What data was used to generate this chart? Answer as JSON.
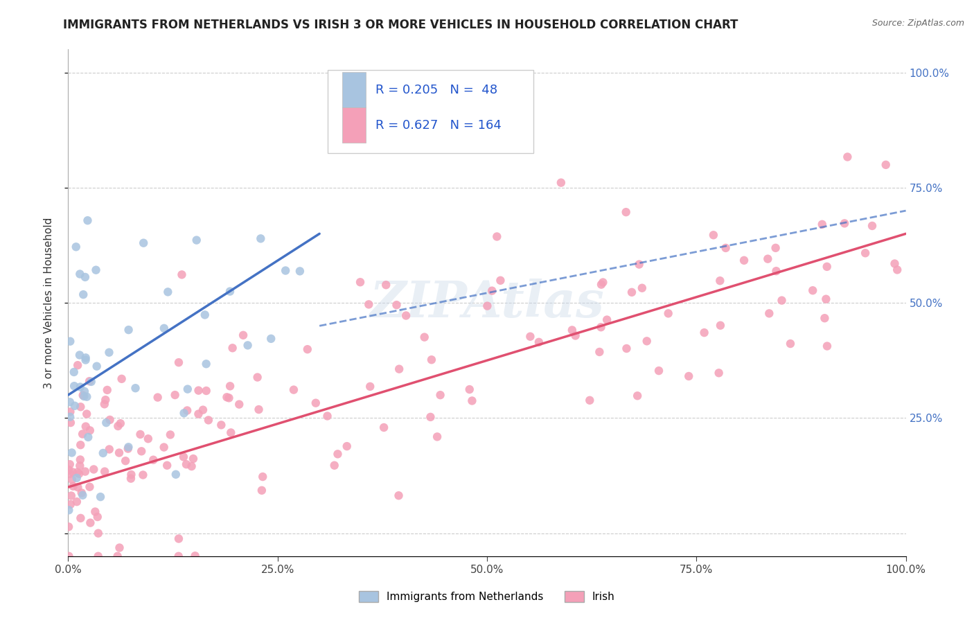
{
  "title": "IMMIGRANTS FROM NETHERLANDS VS IRISH 3 OR MORE VEHICLES IN HOUSEHOLD CORRELATION CHART",
  "source": "Source: ZipAtlas.com",
  "ylabel": "3 or more Vehicles in Household",
  "legend_label1": "Immigrants from Netherlands",
  "legend_label2": "Irish",
  "R1": 0.205,
  "N1": 48,
  "R2": 0.627,
  "N2": 164,
  "color_nl": "#a8c4e0",
  "color_ir": "#f4a0b8",
  "line_nl_color": "#4472c4",
  "line_ir_color": "#e05070",
  "watermark_text": "ZIPAtlas",
  "xlim": [
    0,
    100
  ],
  "ylim": [
    -5,
    105
  ],
  "x_ticks": [
    0,
    25,
    50,
    75,
    100
  ],
  "x_tick_labels": [
    "0.0%",
    "25.0%",
    "50.0%",
    "75.0%",
    "100.0%"
  ],
  "y_ticks": [
    0,
    25,
    50,
    75,
    100
  ],
  "y_tick_labels": [
    "",
    "25.0%",
    "50.0%",
    "75.0%",
    "100.0%"
  ],
  "right_axis_color": "#4472c4",
  "nl_x_scale": 30,
  "ir_x_scale": 100,
  "nl_line_start_x": 0,
  "nl_line_end_x": 30,
  "nl_line_start_y": 30,
  "nl_line_end_y": 65,
  "ir_line_start_x": 0,
  "ir_line_end_x": 100,
  "ir_line_start_y": 10,
  "ir_line_end_y": 65,
  "dashed_line_start_x": 30,
  "dashed_line_end_x": 100,
  "dashed_line_start_y": 45,
  "dashed_line_end_y": 70
}
